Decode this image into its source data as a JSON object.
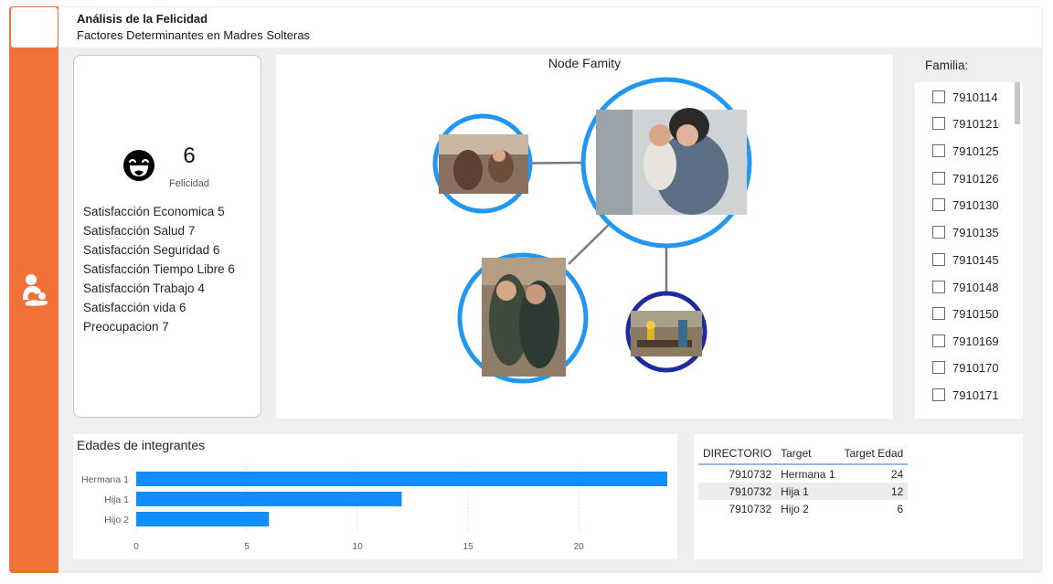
{
  "header": {
    "title": "Análisis de la Felicidad",
    "subtitle": "Factores Determinantes en Madres Solteras"
  },
  "nav": {
    "icon": "mother-child-icon"
  },
  "kpi": {
    "value": "6",
    "label": "Felicidad",
    "icon": "laughing-face-icon",
    "satisfactions": [
      "Satisfacción Economica 5",
      "Satisfacción Salud 7",
      "Satisfacción Seguridad 6",
      "Satisfacción Tiempo Libre 6",
      "Satisfacción Trabajo 4",
      "Satisfacción vida 6",
      "Preocupacion 7"
    ]
  },
  "node_graph": {
    "title": "Node Famity",
    "nodes": [
      {
        "id": "mother",
        "photo": "woman holding child"
      },
      {
        "id": "hermana",
        "photo": "two girls hugging"
      },
      {
        "id": "hija",
        "photo": "two teen girls"
      },
      {
        "id": "hijo",
        "photo": "child walking on log"
      }
    ],
    "edges": [
      [
        "hermana",
        "mother"
      ],
      [
        "mother",
        "hija"
      ],
      [
        "mother",
        "hijo"
      ]
    ],
    "colors": {
      "ring": "#2196f3",
      "ring_dark": "#1f2a9e",
      "edge": "#7a7a7a"
    }
  },
  "slicer": {
    "title": "Familia:",
    "items": [
      "7910114",
      "7910121",
      "7910125",
      "7910126",
      "7910130",
      "7910135",
      "7910145",
      "7910148",
      "7910150",
      "7910169",
      "7910170",
      "7910171"
    ]
  },
  "bar_chart": {
    "title": "Edades de integrantes"
  },
  "chart_data": {
    "type": "bar",
    "orientation": "horizontal",
    "title": "Edades de integrantes",
    "categories": [
      "Hermana 1",
      "Hija 1",
      "Hijo 2"
    ],
    "values": [
      24,
      12,
      6
    ],
    "xlim": [
      0,
      24
    ],
    "xticks": [
      0,
      5,
      10,
      15,
      20
    ],
    "grid": true,
    "color": "#118dff"
  },
  "table": {
    "headers": [
      "DIRECTORIO",
      "Target",
      "Target Edad"
    ],
    "rows": [
      [
        "7910732",
        "Hermana 1",
        "24"
      ],
      [
        "7910732",
        "Hija 1",
        "12"
      ],
      [
        "7910732",
        "Hijo 2",
        "6"
      ]
    ]
  },
  "colors": {
    "accent": "#f07236",
    "bar": "#118dff",
    "background": "#efefef"
  }
}
